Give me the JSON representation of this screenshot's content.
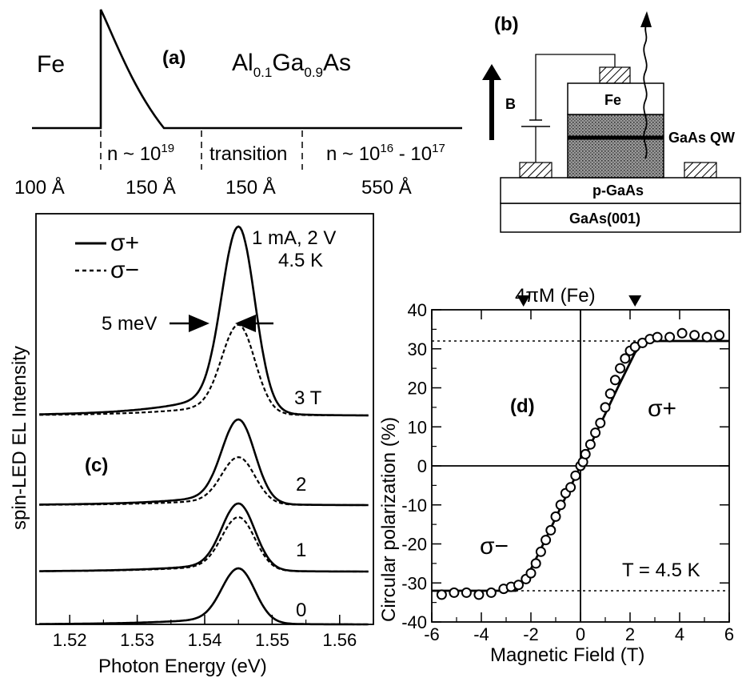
{
  "panel_a": {
    "label": "(a)",
    "left_material": "Fe",
    "right_material_base": "Al",
    "right_material_sub1": "0.1",
    "right_material_mid": "Ga",
    "right_material_sub2": "0.9",
    "right_material_end": "As",
    "regions": [
      {
        "doping_base": "",
        "doping_exp": "",
        "doping_tail": "",
        "doping_exp2": "",
        "thickness": "100 Å"
      },
      {
        "doping_base": "n ~ 10",
        "doping_exp": "19",
        "doping_tail": "",
        "doping_exp2": "",
        "thickness": "150 Å"
      },
      {
        "doping_base": "transition",
        "doping_exp": "",
        "doping_tail": "",
        "doping_exp2": "",
        "thickness": "150 Å"
      },
      {
        "doping_base": "n ~ 10",
        "doping_exp": "16",
        "doping_tail": " - 10",
        "doping_exp2": "17",
        "thickness": "550 Å"
      }
    ]
  },
  "panel_b": {
    "label": "(b)",
    "field_label": "B",
    "layers": {
      "fe": "Fe",
      "qw": "GaAs QW",
      "pgaas": "p-GaAs",
      "substrate": "GaAs(001)"
    }
  },
  "panel_c": {
    "label": "(c)",
    "legend": {
      "plus": "σ+",
      "minus": "σ−"
    },
    "condition_line1": "1 mA, 2 V",
    "condition_line2": "4.5 K",
    "linewidth_label": "5 meV",
    "ylabel": "spin-LED EL Intensity",
    "xlabel": "Photon Energy (eV)",
    "xticks": [
      "1.52",
      "1.53",
      "1.54",
      "1.55",
      "1.56"
    ],
    "field_labels": [
      "3 T",
      "2",
      "1",
      "0"
    ]
  },
  "panel_d": {
    "label": "(d)",
    "top_marker": "4πM (Fe)",
    "temperature": "T = 4.5 K",
    "plus_label": "σ+",
    "minus_label": "σ−",
    "xlabel": "Magnetic Field (T)",
    "ylabel": "Circular polarization (%)",
    "xticks": [
      "-6",
      "-4",
      "-2",
      "0",
      "2",
      "4",
      "6"
    ],
    "yticks": [
      "40",
      "30",
      "20",
      "10",
      "0",
      "-10",
      "-20",
      "-30",
      "-40"
    ]
  },
  "chart_data": [
    {
      "type": "line",
      "panel": "c",
      "xlabel": "Photon Energy (eV)",
      "ylabel": "spin-LED EL Intensity",
      "xlim": [
        1.515,
        1.565
      ],
      "peak_center_eV": 1.545,
      "fwhm_meV": 5,
      "series": [
        {
          "name": "σ+",
          "field_T": 3,
          "relative_peak": 1.0
        },
        {
          "name": "σ−",
          "field_T": 3,
          "relative_peak": 0.48
        },
        {
          "name": "σ+",
          "field_T": 2,
          "relative_peak": 1.0
        },
        {
          "name": "σ−",
          "field_T": 2,
          "relative_peak": 0.56
        },
        {
          "name": "σ+",
          "field_T": 1,
          "relative_peak": 1.0
        },
        {
          "name": "σ−",
          "field_T": 1,
          "relative_peak": 0.8
        },
        {
          "name": "σ+",
          "field_T": 0,
          "relative_peak": 1.0
        },
        {
          "name": "σ−",
          "field_T": 0,
          "relative_peak": 1.0
        }
      ]
    },
    {
      "type": "scatter",
      "panel": "d",
      "xlabel": "Magnetic Field (T)",
      "ylabel": "Circular polarization (%)",
      "xlim": [
        -6,
        6
      ],
      "ylim": [
        -40,
        40
      ],
      "saturation_levels": [
        32,
        -32
      ],
      "magnetization_markers_T": [
        -2.3,
        2.2
      ],
      "points": [
        [
          -5.6,
          -33
        ],
        [
          -5.1,
          -32.5
        ],
        [
          -4.6,
          -32.5
        ],
        [
          -4.1,
          -33
        ],
        [
          -3.6,
          -32.5
        ],
        [
          -3.1,
          -31.5
        ],
        [
          -2.8,
          -31
        ],
        [
          -2.5,
          -30.5
        ],
        [
          -2.2,
          -29
        ],
        [
          -2.0,
          -27.5
        ],
        [
          -1.8,
          -25
        ],
        [
          -1.6,
          -22
        ],
        [
          -1.4,
          -19
        ],
        [
          -1.2,
          -16.5
        ],
        [
          -1.0,
          -13
        ],
        [
          -0.8,
          -10
        ],
        [
          -0.6,
          -7
        ],
        [
          -0.4,
          -5.5
        ],
        [
          -0.2,
          -2.5
        ],
        [
          0.0,
          0
        ],
        [
          0.1,
          1
        ],
        [
          0.2,
          3
        ],
        [
          0.4,
          5.5
        ],
        [
          0.6,
          8.5
        ],
        [
          0.8,
          11
        ],
        [
          1.0,
          15
        ],
        [
          1.2,
          18.5
        ],
        [
          1.4,
          22
        ],
        [
          1.6,
          25
        ],
        [
          1.8,
          27.5
        ],
        [
          2.0,
          29.5
        ],
        [
          2.2,
          30.5
        ],
        [
          2.5,
          31.5
        ],
        [
          2.8,
          32.5
        ],
        [
          3.1,
          33
        ],
        [
          3.6,
          33
        ],
        [
          4.1,
          34
        ],
        [
          4.6,
          33.5
        ],
        [
          5.1,
          33
        ],
        [
          5.6,
          33.5
        ]
      ],
      "fit": [
        [
          -6,
          -32
        ],
        [
          -2.6,
          -32
        ],
        [
          -2.2,
          -29
        ],
        [
          -1.5,
          -20
        ],
        [
          0,
          0
        ],
        [
          1.5,
          20
        ],
        [
          2.2,
          29
        ],
        [
          2.6,
          32
        ],
        [
          6,
          32
        ]
      ]
    }
  ]
}
